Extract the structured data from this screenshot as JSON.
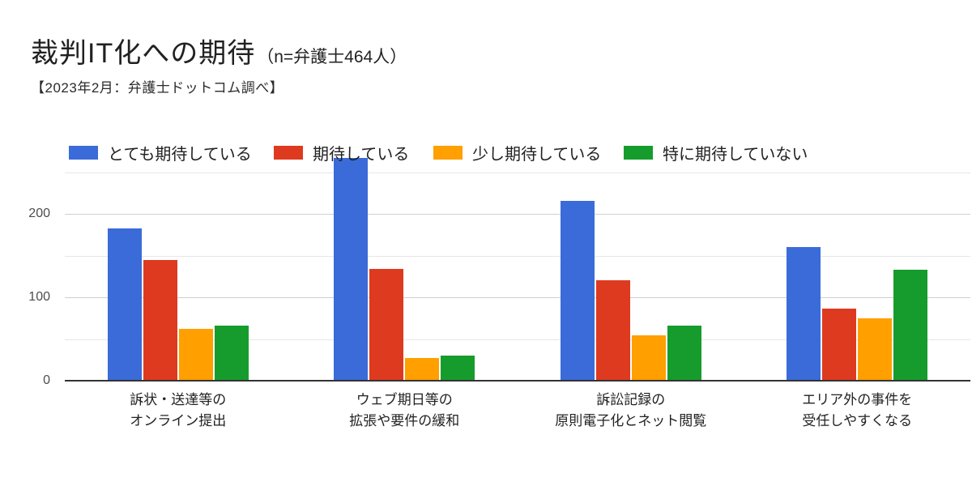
{
  "header": {
    "title_main": "裁判IT化への期待",
    "title_suffix": "（n=弁護士464人）",
    "subtitle": "【2023年2月：弁護士ドットコム調べ】"
  },
  "chart_data": {
    "type": "bar",
    "title": "裁判IT化への期待（n=弁護士464人）",
    "subtitle": "【2023年2月：弁護士ドットコム調べ】",
    "categories": [
      [
        "訴状・送達等の",
        "オンライン提出"
      ],
      [
        "ウェブ期日等の",
        "拡張や要件の緩和"
      ],
      [
        "訴訟記録の",
        "原則電子化とネット閲覧"
      ],
      [
        "エリア外の事件を",
        "受任しやすくなる"
      ]
    ],
    "series": [
      {
        "name": "とても期待している",
        "color": "#3A6BD8",
        "values": [
          183,
          267,
          216,
          160
        ]
      },
      {
        "name": "期待している",
        "color": "#DE3A1F",
        "values": [
          145,
          134,
          120,
          86
        ]
      },
      {
        "name": "少し期待している",
        "color": "#FF9F00",
        "values": [
          62,
          27,
          54,
          75
        ]
      },
      {
        "name": "特に期待していない",
        "color": "#169C2D",
        "values": [
          66,
          30,
          66,
          133
        ]
      }
    ],
    "xlabel": "",
    "ylabel": "",
    "ylim": [
      0,
      250
    ],
    "y_major_ticks": [
      0,
      100,
      200
    ],
    "y_minor_gridlines": [
      50,
      150,
      250
    ],
    "grid": true,
    "legend_position": "top",
    "axis_color": "#333333",
    "major_grid_color": "#cfcfcf",
    "minor_grid_color": "#e7e7e7",
    "background_color": "#ffffff"
  }
}
